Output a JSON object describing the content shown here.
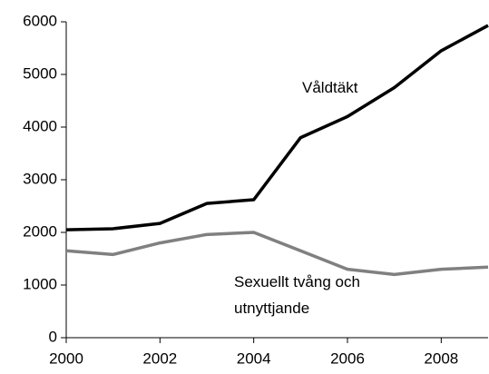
{
  "chart_data": {
    "type": "line",
    "x": [
      2000,
      2001,
      2002,
      2003,
      2004,
      2005,
      2006,
      2007,
      2008,
      2009
    ],
    "series": [
      {
        "name": "Våldtäkt",
        "color": "#000000",
        "values": [
          2050,
          2070,
          2170,
          2550,
          2620,
          3800,
          4200,
          4750,
          5450,
          5930
        ]
      },
      {
        "name": "Sexuellt tvång och utnyttjande",
        "color": "#808080",
        "values": [
          1650,
          1580,
          1800,
          1960,
          2000,
          1650,
          1300,
          1200,
          1300,
          1340
        ]
      }
    ],
    "xlim": [
      2000,
      2009
    ],
    "xticks": [
      2000,
      2002,
      2004,
      2006,
      2008
    ],
    "ylim": [
      0,
      6000
    ],
    "yticks": [
      0,
      1000,
      2000,
      3000,
      4000,
      5000,
      6000
    ],
    "grid": false
  }
}
